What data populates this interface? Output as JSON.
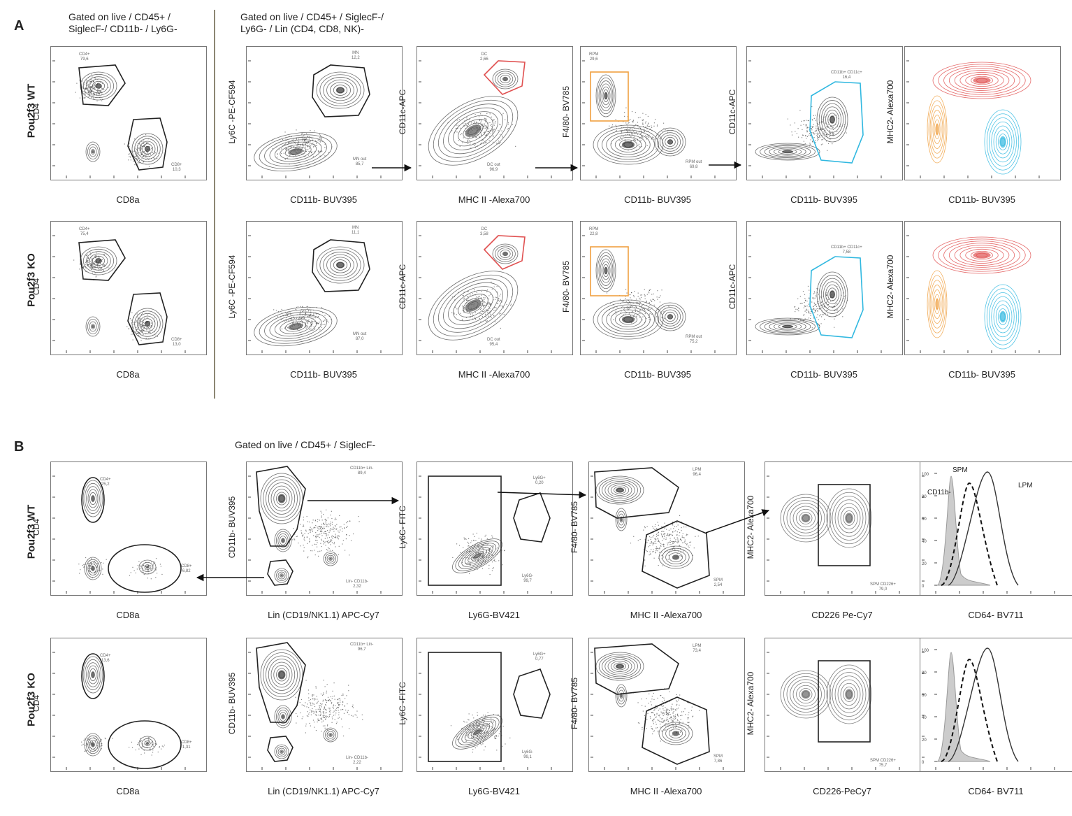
{
  "panel_a": {
    "letter": "A",
    "gate_left": [
      "Gated on live / CD45+ /",
      "SiglecF-/ CD11b- / Ly6G-"
    ],
    "gate_right": [
      "Gated on live / CD45+ / SiglecF-/",
      "Ly6G- / Lin (CD4, CD8, NK)-"
    ],
    "rows": [
      {
        "label": "Pou2f3 WT",
        "plots": [
          {
            "xlab": "CD8a",
            "ylab": "CD4",
            "gates": [
              [
                "CD4+",
                "79,6"
              ],
              [
                "CD8+",
                "10,3"
              ]
            ]
          },
          {
            "xlab": "CD11b- BUV395",
            "ylab": "Ly6C -PE-CF594",
            "gates": [
              [
                "MN",
                "12,2"
              ],
              [
                "MN out",
                "85,7"
              ]
            ]
          },
          {
            "xlab": "MHC II -Alexa700",
            "ylab": "CD11c-APC",
            "gates": [
              [
                "DC",
                "2,66"
              ],
              [
                "DC out",
                "96,9"
              ]
            ]
          },
          {
            "xlab": "CD11b- BUV395",
            "ylab": "F4/80- BV785",
            "gates": [
              [
                "RPM",
                "29,6"
              ],
              [
                "RPM out",
                "69,8"
              ]
            ]
          },
          {
            "xlab": "CD11b- BUV395",
            "ylab": "CD11c-APC",
            "gates": [
              [
                "CD11b+ CD11c+",
                "16,4"
              ]
            ]
          },
          {
            "xlab": "CD11b- BUV395",
            "ylab": "MHC2- Alexa700",
            "gates": []
          }
        ]
      },
      {
        "label": "Pou2f3 KO",
        "plots": [
          {
            "xlab": "CD8a",
            "ylab": "CD4",
            "gates": [
              [
                "CD4+",
                "75,4"
              ],
              [
                "CD8+",
                "13,0"
              ]
            ]
          },
          {
            "xlab": "CD11b- BUV395",
            "ylab": "Ly6C -PE-CF594",
            "gates": [
              [
                "MN",
                "11,1"
              ],
              [
                "MN out",
                "87,0"
              ]
            ]
          },
          {
            "xlab": "MHC II -Alexa700",
            "ylab": "CD11c-APC",
            "gates": [
              [
                "DC",
                "3,58"
              ],
              [
                "DC out",
                "95,4"
              ]
            ]
          },
          {
            "xlab": "CD11b- BUV395",
            "ylab": "F4/80- BV785",
            "gates": [
              [
                "RPM",
                "22,8"
              ],
              [
                "RPM out",
                "75,2"
              ]
            ]
          },
          {
            "xlab": "CD11b- BUV395",
            "ylab": "CD11c-APC",
            "gates": [
              [
                "CD11b+ CD11c+",
                "7,58"
              ]
            ]
          },
          {
            "xlab": "CD11b- BUV395",
            "ylab": "MHC2- Alexa700",
            "gates": []
          }
        ]
      }
    ]
  },
  "panel_b": {
    "letter": "B",
    "gate": "Gated on live / CD45+ / SiglecF-",
    "rows": [
      {
        "label": "Pou2f3 WT",
        "plots": [
          {
            "xlab": "CD8a",
            "ylab": "CD4",
            "gates": [
              [
                "CD4+",
                "25,2"
              ],
              [
                "CD8+",
                "6,82"
              ]
            ]
          },
          {
            "xlab": "Lin (CD19/NK1.1) APC-Cy7",
            "ylab": "CD11b- BUV395",
            "gates": [
              [
                "CD11b+ Lin-",
                "89,4"
              ],
              [
                "Lin- CD11b-",
                "2,32"
              ]
            ]
          },
          {
            "xlab": "Ly6G-BV421",
            "ylab": "Ly6C- FITC",
            "gates": [
              [
                "Ly6G+",
                "0,20"
              ],
              [
                "Ly6G-",
                "99,7"
              ]
            ]
          },
          {
            "xlab": "MHC II -Alexa700",
            "ylab": "F4/80- BV785",
            "gates": [
              [
                "LPM",
                "96,4"
              ],
              [
                "SPM",
                "2,54"
              ]
            ]
          },
          {
            "xlab": "CD226 Pe-Cy7",
            "ylab": "MHC2- Alexa700",
            "gates": [
              [
                "SPM CD226+",
                "79,0"
              ]
            ]
          },
          {
            "xlab": "CD64- BV711",
            "ylab": "",
            "gates": []
          }
        ]
      },
      {
        "label": "Pou2f3 KO",
        "plots": [
          {
            "xlab": "CD8a",
            "ylab": "CD4",
            "gates": [
              [
                "CD4+",
                "13,6"
              ],
              [
                "CD8+",
                "1,31"
              ]
            ]
          },
          {
            "xlab": "Lin (CD19/NK1.1) APC-Cy7",
            "ylab": "CD11b- BUV395",
            "gates": [
              [
                "CD11b+ Lin-",
                "96,7"
              ],
              [
                "Lin- CD11b-",
                "2,22"
              ]
            ]
          },
          {
            "xlab": "Ly6G-BV421",
            "ylab": "Ly6C -FITC",
            "gates": [
              [
                "Ly6G+",
                "0,77"
              ],
              [
                "Ly6G-",
                "99,1"
              ]
            ]
          },
          {
            "xlab": "MHC II -Alexa700",
            "ylab": "F4/80- BV785",
            "gates": [
              [
                "LPM",
                "73,4"
              ],
              [
                "SPM",
                "7,86"
              ]
            ]
          },
          {
            "xlab": "CD226-PeCy7",
            "ylab": "MHC2- Alexa700",
            "gates": [
              [
                "SPM CD226+",
                "75,7"
              ]
            ]
          },
          {
            "xlab": "CD64- BV711",
            "ylab": "",
            "gates": []
          }
        ]
      }
    ],
    "histogram": {
      "labels": [
        "CD11b-",
        "SPM",
        "LPM"
      ],
      "yticks": [
        "100",
        "80",
        "60",
        "40",
        "20",
        "0"
      ]
    }
  },
  "colors": {
    "red": "#e05050",
    "orange": "#f0a040",
    "cyan": "#30b8e0",
    "gate": "#222222"
  }
}
